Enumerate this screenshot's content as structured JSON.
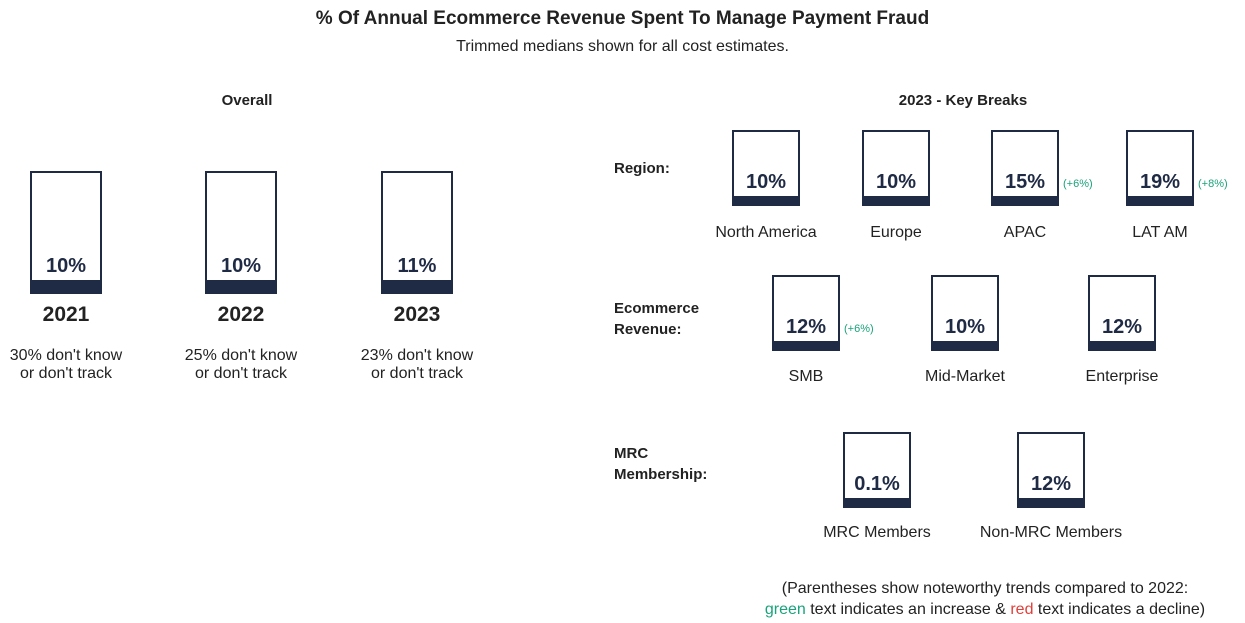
{
  "title": "% Of Annual Ecommerce Revenue Spent To Manage Payment Fraud",
  "subtitle": "Trimmed medians shown for all cost estimates.",
  "overall": {
    "heading": "Overall",
    "items": [
      {
        "label": "10%",
        "year": "2021",
        "note": "30% don't know or don't track"
      },
      {
        "label": "10%",
        "year": "2022",
        "note": "25% don't know or don't track"
      },
      {
        "label": "11%",
        "year": "2023",
        "note": "23% don't know or don't track"
      }
    ]
  },
  "breaks": {
    "heading": "2023 - Key Breaks",
    "groups": [
      {
        "name": "Region:",
        "items": [
          {
            "label": "10%",
            "name": "North America"
          },
          {
            "label": "10%",
            "name": "Europe"
          },
          {
            "label": "15%",
            "name": "APAC",
            "trend": "(+6%)"
          },
          {
            "label": "19%",
            "name": "LAT AM",
            "trend": "(+8%)"
          }
        ]
      },
      {
        "name": "Ecommerce Revenue:",
        "items": [
          {
            "label": "12%",
            "name": "SMB",
            "trend": "(+6%)"
          },
          {
            "label": "10%",
            "name": "Mid-Market"
          },
          {
            "label": "12%",
            "name": "Enterprise"
          }
        ]
      },
      {
        "name": "MRC Membership:",
        "items": [
          {
            "label": "0.1%",
            "name": "MRC Members"
          },
          {
            "label": "12%",
            "name": "Non-MRC Members"
          }
        ]
      }
    ]
  },
  "footnote": {
    "line1": "(Parentheses show noteworthy trends compared to 2022:",
    "green": "green",
    "middle": " text indicates an increase & ",
    "red": "red",
    "end": " text indicates a decline)"
  }
}
